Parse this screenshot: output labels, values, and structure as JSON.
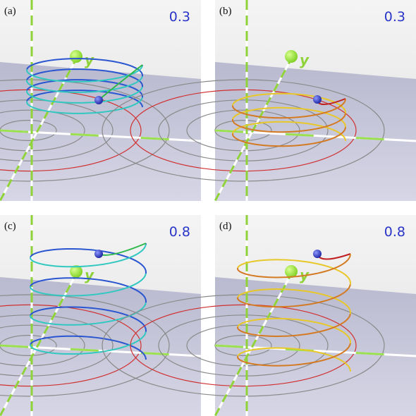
{
  "panels": [
    {
      "label": "(a)",
      "value_label": "0.3",
      "axis_label": "y"
    },
    {
      "label": "(b)",
      "value_label": "0.3",
      "axis_label": "y"
    },
    {
      "label": "(c)",
      "value_label": "0.8",
      "axis_label": "y"
    },
    {
      "label": "(d)",
      "value_label": "0.8",
      "axis_label": "y"
    }
  ]
}
